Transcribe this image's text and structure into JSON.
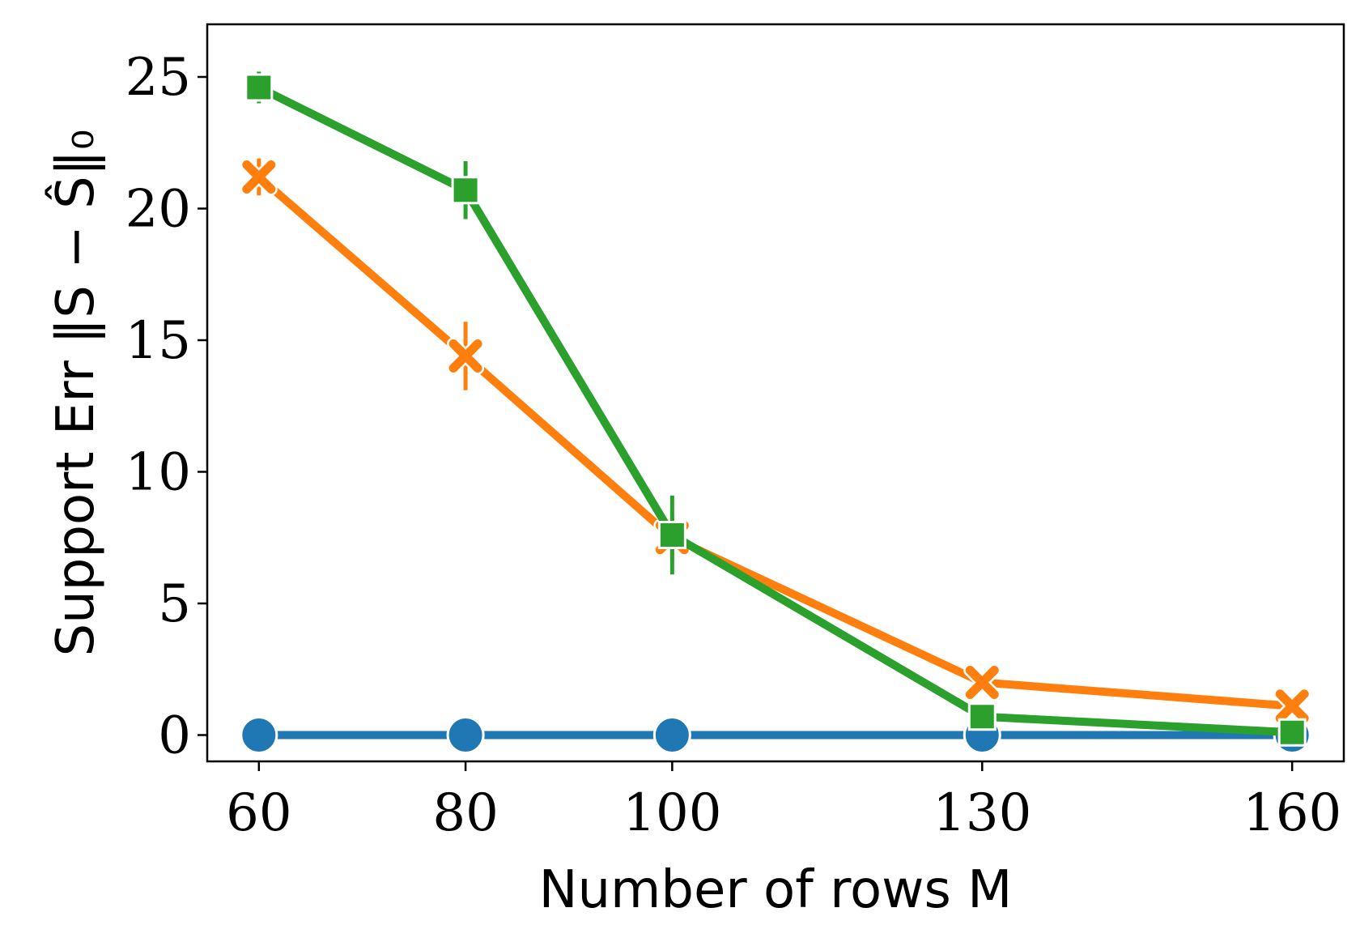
{
  "chart_data": {
    "type": "line",
    "title": "",
    "xlabel": "Number of rows M",
    "ylabel": "Support Err ‖S − Ŝ‖₀",
    "x": [
      60,
      80,
      100,
      130,
      160
    ],
    "x_tick_labels": [
      "60",
      "80",
      "100",
      "130",
      "160"
    ],
    "y_ticks": [
      0,
      5,
      10,
      15,
      20,
      25
    ],
    "y_tick_labels": [
      "0",
      "5",
      "10",
      "15",
      "20",
      "25"
    ],
    "xlim": [
      55,
      165
    ],
    "ylim": [
      -1,
      27
    ],
    "grid": false,
    "series": [
      {
        "color": "#1f77b4",
        "marker": "circle",
        "values": [
          0,
          0,
          0,
          0,
          0
        ],
        "err": [
          0,
          0,
          0,
          0,
          0
        ]
      },
      {
        "color": "#ff7f0e",
        "marker": "x",
        "values": [
          21.2,
          14.4,
          7.5,
          2.0,
          1.1
        ],
        "err": [
          0.7,
          1.3,
          0.8,
          0.2,
          0.1
        ]
      },
      {
        "color": "#2ca02c",
        "marker": "square",
        "values": [
          24.6,
          20.7,
          7.6,
          0.7,
          0.1
        ],
        "err": [
          0.6,
          1.1,
          1.5,
          0.1,
          0.05
        ]
      }
    ]
  }
}
